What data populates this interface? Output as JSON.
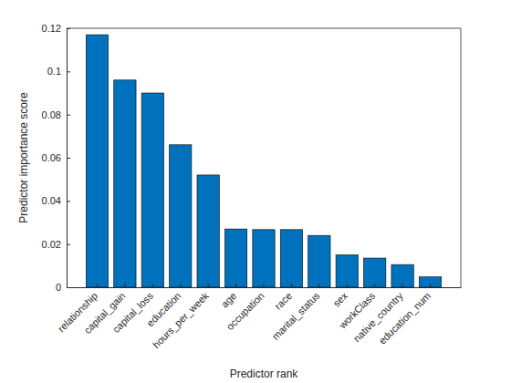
{
  "chart_data": {
    "type": "bar",
    "x_label": "Predictor rank",
    "y_label": "Predictor importance score",
    "categories": [
      "relationship",
      "capital_gain",
      "capital_loss",
      "education",
      "hours_per_week",
      "age",
      "occupation",
      "race",
      "marital_status",
      "sex",
      "workClass",
      "native_country",
      "education_num"
    ],
    "values": [
      0.117,
      0.096,
      0.09,
      0.066,
      0.052,
      0.027,
      0.0267,
      0.0267,
      0.024,
      0.015,
      0.0135,
      0.0105,
      0.0048
    ],
    "color": "#0072bd",
    "ylim": [
      0,
      0.12
    ],
    "yticks": [
      0,
      0.02,
      0.04,
      0.06,
      0.08,
      0.1,
      0.12
    ],
    "grid": false
  }
}
